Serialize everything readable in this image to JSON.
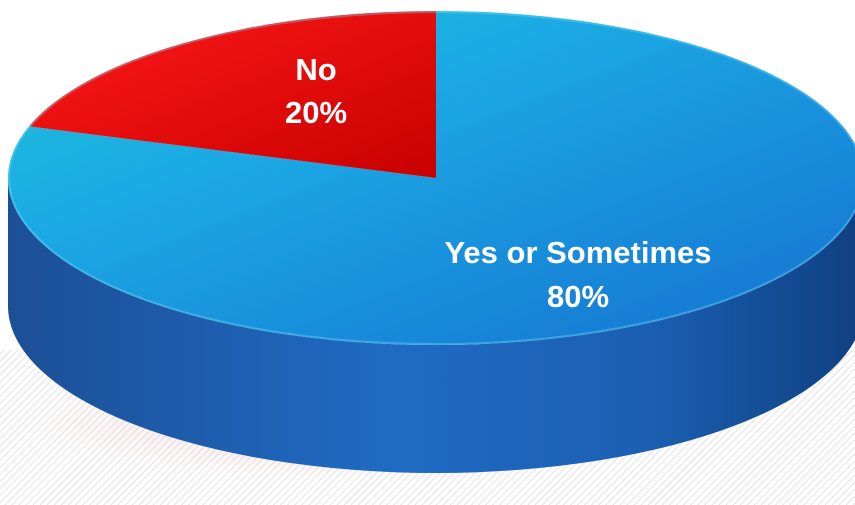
{
  "chart_data": {
    "type": "pie",
    "style": "3d",
    "slices": [
      {
        "label": "Yes or Sometimes",
        "value": 80,
        "value_label": "80%",
        "color": "#1aa0e6"
      },
      {
        "label": "No",
        "value": 20,
        "value_label": "20%",
        "color": "#e80a0a"
      }
    ],
    "start_angle_deg": 270
  }
}
